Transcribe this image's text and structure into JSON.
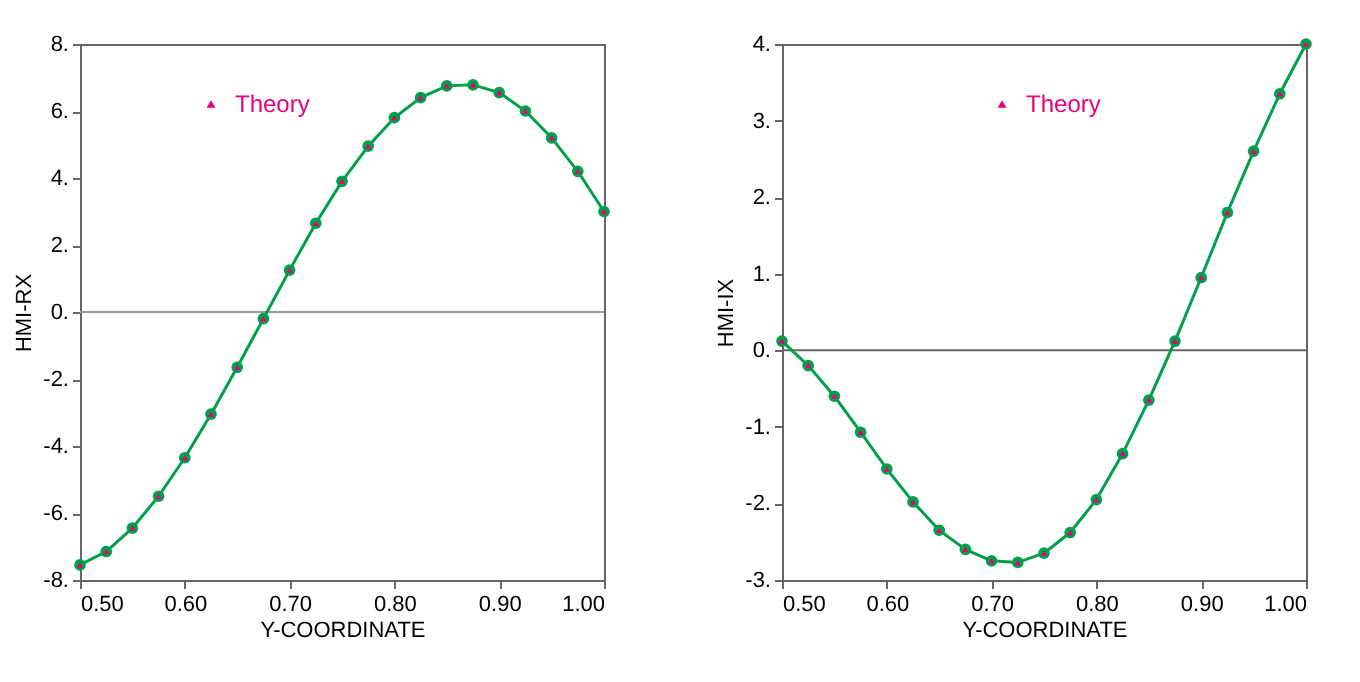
{
  "chart_data": [
    {
      "type": "line",
      "xlabel": "Y-COORDINATE",
      "ylabel": "HMI-RX",
      "x": [
        0.5,
        0.525,
        0.55,
        0.575,
        0.6,
        0.625,
        0.65,
        0.675,
        0.7,
        0.725,
        0.75,
        0.775,
        0.8,
        0.825,
        0.85,
        0.875,
        0.9,
        0.925,
        0.95,
        0.975,
        1.0
      ],
      "series": [
        {
          "color": "#00a04a",
          "marker": "circle",
          "values": [
            -7.55,
            -7.15,
            -6.45,
            -5.5,
            -4.35,
            -3.05,
            -1.65,
            -0.2,
            1.25,
            2.65,
            3.9,
            4.95,
            5.8,
            6.4,
            6.75,
            6.78,
            6.55,
            6.0,
            5.2,
            4.2,
            3.0
          ]
        },
        {
          "name": "Theory",
          "type": "scatter",
          "color": "#e6007e",
          "marker": "triangle",
          "values": [
            -7.55,
            -7.15,
            -6.45,
            -5.5,
            -4.35,
            -3.05,
            -1.65,
            -0.2,
            1.25,
            2.65,
            3.9,
            4.95,
            5.8,
            6.4,
            6.75,
            6.78,
            6.55,
            6.0,
            5.2,
            4.2,
            3.0
          ]
        }
      ],
      "xlim": [
        0.5,
        1.0
      ],
      "xticks": [
        {
          "value": 0.5,
          "label": "0.50"
        },
        {
          "value": 0.6,
          "label": "0.60"
        },
        {
          "value": 0.7,
          "label": "0.70"
        },
        {
          "value": 0.8,
          "label": "0.80"
        },
        {
          "value": 0.9,
          "label": "0.90"
        },
        {
          "value": 1.0,
          "label": "1.00"
        }
      ],
      "ylim": [
        -8,
        8
      ],
      "yticks": [
        {
          "value": -8,
          "label": "-8."
        },
        {
          "value": -6,
          "label": "-6."
        },
        {
          "value": -4,
          "label": "-4."
        },
        {
          "value": -2,
          "label": "-2."
        },
        {
          "value": 0,
          "label": "0."
        },
        {
          "value": 2,
          "label": "2."
        },
        {
          "value": 4,
          "label": "4."
        },
        {
          "value": 6,
          "label": "6."
        },
        {
          "value": 8,
          "label": "8."
        }
      ],
      "ref_lines": [
        {
          "axis": "y",
          "value": 0,
          "color": "#999999"
        }
      ],
      "grid": false,
      "legend": "top left"
    },
    {
      "type": "line",
      "xlabel": "Y-COORDINATE",
      "ylabel": "HMI-IX",
      "x": [
        0.5,
        0.525,
        0.55,
        0.575,
        0.6,
        0.625,
        0.65,
        0.675,
        0.7,
        0.725,
        0.75,
        0.775,
        0.8,
        0.825,
        0.85,
        0.875,
        0.9,
        0.925,
        0.95,
        0.975,
        1.0
      ],
      "series": [
        {
          "color": "#00a04a",
          "marker": "circle",
          "values": [
            0.12,
            -0.2,
            -0.6,
            -1.07,
            -1.55,
            -1.98,
            -2.35,
            -2.6,
            -2.75,
            -2.77,
            -2.65,
            -2.38,
            -1.95,
            -1.35,
            -0.65,
            0.12,
            0.95,
            1.8,
            2.6,
            3.35,
            4.0
          ]
        },
        {
          "name": "Theory",
          "type": "scatter",
          "color": "#e6007e",
          "marker": "triangle",
          "values": [
            0.12,
            -0.2,
            -0.6,
            -1.07,
            -1.55,
            -1.98,
            -2.35,
            -2.6,
            -2.75,
            -2.77,
            -2.65,
            -2.38,
            -1.95,
            -1.35,
            -0.65,
            0.12,
            0.95,
            1.8,
            2.6,
            3.35,
            4.0
          ]
        }
      ],
      "xlim": [
        0.5,
        1.0
      ],
      "xticks": [
        {
          "value": 0.5,
          "label": "0.50"
        },
        {
          "value": 0.6,
          "label": "0.60"
        },
        {
          "value": 0.7,
          "label": "0.70"
        },
        {
          "value": 0.8,
          "label": "0.80"
        },
        {
          "value": 0.9,
          "label": "0.90"
        },
        {
          "value": 1.0,
          "label": "1.00"
        }
      ],
      "ylim": [
        -3,
        4
      ],
      "yticks": [
        {
          "value": -3,
          "label": "-3."
        },
        {
          "value": -2,
          "label": "-2."
        },
        {
          "value": -1,
          "label": "-1."
        },
        {
          "value": 0,
          "label": "0."
        },
        {
          "value": 1,
          "label": "1."
        },
        {
          "value": 2,
          "label": "2."
        },
        {
          "value": 3,
          "label": "3."
        },
        {
          "value": 4,
          "label": "4."
        }
      ],
      "ref_lines": [
        {
          "axis": "y",
          "value": 0,
          "color": "#666666"
        }
      ],
      "grid": false,
      "legend": "top"
    }
  ]
}
